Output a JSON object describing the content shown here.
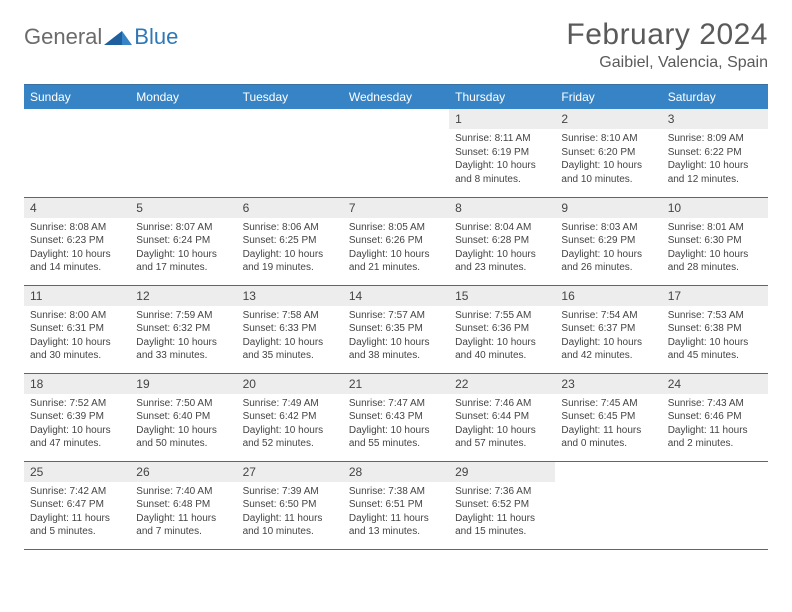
{
  "logo": {
    "general": "General",
    "blue": "Blue"
  },
  "header": {
    "month_title": "February 2024",
    "location": "Gaibiel, Valencia, Spain"
  },
  "colors": {
    "header_bar": "#3684c6",
    "header_text": "#ffffff",
    "daynum_bg": "#ededed",
    "border": "#3a6f9e",
    "logo_blue": "#2f78b7",
    "text_gray": "#5a5a5a"
  },
  "day_names": [
    "Sunday",
    "Monday",
    "Tuesday",
    "Wednesday",
    "Thursday",
    "Friday",
    "Saturday"
  ],
  "weeks": [
    [
      {
        "empty": true
      },
      {
        "empty": true
      },
      {
        "empty": true
      },
      {
        "empty": true
      },
      {
        "num": "1",
        "sunrise": "Sunrise: 8:11 AM",
        "sunset": "Sunset: 6:19 PM",
        "daylight": "Daylight: 10 hours and 8 minutes."
      },
      {
        "num": "2",
        "sunrise": "Sunrise: 8:10 AM",
        "sunset": "Sunset: 6:20 PM",
        "daylight": "Daylight: 10 hours and 10 minutes."
      },
      {
        "num": "3",
        "sunrise": "Sunrise: 8:09 AM",
        "sunset": "Sunset: 6:22 PM",
        "daylight": "Daylight: 10 hours and 12 minutes."
      }
    ],
    [
      {
        "num": "4",
        "sunrise": "Sunrise: 8:08 AM",
        "sunset": "Sunset: 6:23 PM",
        "daylight": "Daylight: 10 hours and 14 minutes."
      },
      {
        "num": "5",
        "sunrise": "Sunrise: 8:07 AM",
        "sunset": "Sunset: 6:24 PM",
        "daylight": "Daylight: 10 hours and 17 minutes."
      },
      {
        "num": "6",
        "sunrise": "Sunrise: 8:06 AM",
        "sunset": "Sunset: 6:25 PM",
        "daylight": "Daylight: 10 hours and 19 minutes."
      },
      {
        "num": "7",
        "sunrise": "Sunrise: 8:05 AM",
        "sunset": "Sunset: 6:26 PM",
        "daylight": "Daylight: 10 hours and 21 minutes."
      },
      {
        "num": "8",
        "sunrise": "Sunrise: 8:04 AM",
        "sunset": "Sunset: 6:28 PM",
        "daylight": "Daylight: 10 hours and 23 minutes."
      },
      {
        "num": "9",
        "sunrise": "Sunrise: 8:03 AM",
        "sunset": "Sunset: 6:29 PM",
        "daylight": "Daylight: 10 hours and 26 minutes."
      },
      {
        "num": "10",
        "sunrise": "Sunrise: 8:01 AM",
        "sunset": "Sunset: 6:30 PM",
        "daylight": "Daylight: 10 hours and 28 minutes."
      }
    ],
    [
      {
        "num": "11",
        "sunrise": "Sunrise: 8:00 AM",
        "sunset": "Sunset: 6:31 PM",
        "daylight": "Daylight: 10 hours and 30 minutes."
      },
      {
        "num": "12",
        "sunrise": "Sunrise: 7:59 AM",
        "sunset": "Sunset: 6:32 PM",
        "daylight": "Daylight: 10 hours and 33 minutes."
      },
      {
        "num": "13",
        "sunrise": "Sunrise: 7:58 AM",
        "sunset": "Sunset: 6:33 PM",
        "daylight": "Daylight: 10 hours and 35 minutes."
      },
      {
        "num": "14",
        "sunrise": "Sunrise: 7:57 AM",
        "sunset": "Sunset: 6:35 PM",
        "daylight": "Daylight: 10 hours and 38 minutes."
      },
      {
        "num": "15",
        "sunrise": "Sunrise: 7:55 AM",
        "sunset": "Sunset: 6:36 PM",
        "daylight": "Daylight: 10 hours and 40 minutes."
      },
      {
        "num": "16",
        "sunrise": "Sunrise: 7:54 AM",
        "sunset": "Sunset: 6:37 PM",
        "daylight": "Daylight: 10 hours and 42 minutes."
      },
      {
        "num": "17",
        "sunrise": "Sunrise: 7:53 AM",
        "sunset": "Sunset: 6:38 PM",
        "daylight": "Daylight: 10 hours and 45 minutes."
      }
    ],
    [
      {
        "num": "18",
        "sunrise": "Sunrise: 7:52 AM",
        "sunset": "Sunset: 6:39 PM",
        "daylight": "Daylight: 10 hours and 47 minutes."
      },
      {
        "num": "19",
        "sunrise": "Sunrise: 7:50 AM",
        "sunset": "Sunset: 6:40 PM",
        "daylight": "Daylight: 10 hours and 50 minutes."
      },
      {
        "num": "20",
        "sunrise": "Sunrise: 7:49 AM",
        "sunset": "Sunset: 6:42 PM",
        "daylight": "Daylight: 10 hours and 52 minutes."
      },
      {
        "num": "21",
        "sunrise": "Sunrise: 7:47 AM",
        "sunset": "Sunset: 6:43 PM",
        "daylight": "Daylight: 10 hours and 55 minutes."
      },
      {
        "num": "22",
        "sunrise": "Sunrise: 7:46 AM",
        "sunset": "Sunset: 6:44 PM",
        "daylight": "Daylight: 10 hours and 57 minutes."
      },
      {
        "num": "23",
        "sunrise": "Sunrise: 7:45 AM",
        "sunset": "Sunset: 6:45 PM",
        "daylight": "Daylight: 11 hours and 0 minutes."
      },
      {
        "num": "24",
        "sunrise": "Sunrise: 7:43 AM",
        "sunset": "Sunset: 6:46 PM",
        "daylight": "Daylight: 11 hours and 2 minutes."
      }
    ],
    [
      {
        "num": "25",
        "sunrise": "Sunrise: 7:42 AM",
        "sunset": "Sunset: 6:47 PM",
        "daylight": "Daylight: 11 hours and 5 minutes."
      },
      {
        "num": "26",
        "sunrise": "Sunrise: 7:40 AM",
        "sunset": "Sunset: 6:48 PM",
        "daylight": "Daylight: 11 hours and 7 minutes."
      },
      {
        "num": "27",
        "sunrise": "Sunrise: 7:39 AM",
        "sunset": "Sunset: 6:50 PM",
        "daylight": "Daylight: 11 hours and 10 minutes."
      },
      {
        "num": "28",
        "sunrise": "Sunrise: 7:38 AM",
        "sunset": "Sunset: 6:51 PM",
        "daylight": "Daylight: 11 hours and 13 minutes."
      },
      {
        "num": "29",
        "sunrise": "Sunrise: 7:36 AM",
        "sunset": "Sunset: 6:52 PM",
        "daylight": "Daylight: 11 hours and 15 minutes."
      },
      {
        "empty": true
      },
      {
        "empty": true
      }
    ]
  ]
}
